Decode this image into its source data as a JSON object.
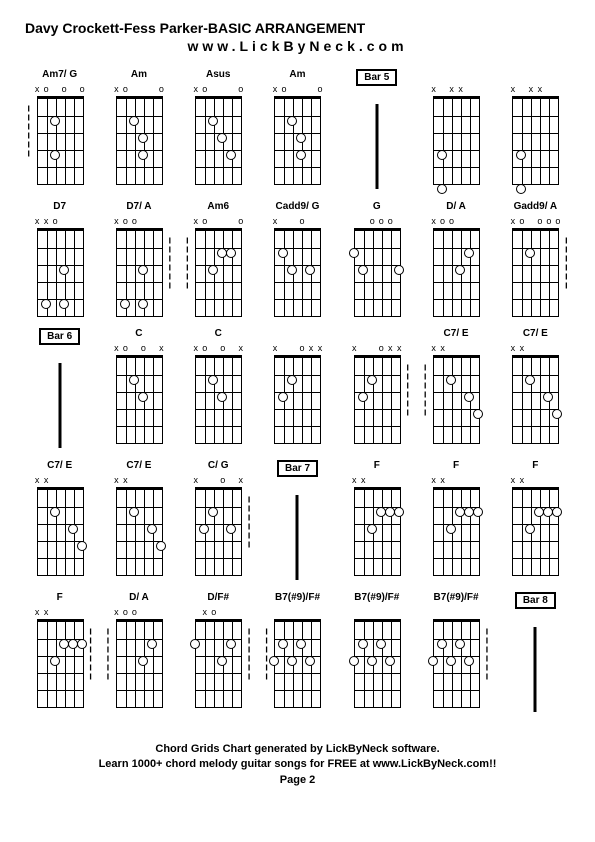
{
  "title": "Davy Crockett-Fess Parker-BASIC ARRANGEMENT",
  "subtitle": "www.LickByNeck.com",
  "footer1": "Chord Grids Chart generated by LickByNeck software.",
  "footer2": "Learn 1000+ chord melody guitar songs for FREE at www.LickByNeck.com!!",
  "footer3": "Page 2",
  "rows": [
    [
      {
        "type": "chord",
        "label": "Am7/ G",
        "top": [
          "x",
          "o",
          "",
          "o",
          "",
          "o"
        ],
        "dots": [
          [
            1,
            2
          ],
          [
            3,
            2
          ]
        ],
        "dashL": true
      },
      {
        "type": "chord",
        "label": "Am",
        "top": [
          "x",
          "o",
          "",
          "",
          "",
          "o"
        ],
        "dots": [
          [
            1,
            2
          ],
          [
            2,
            3
          ],
          [
            3,
            3
          ]
        ]
      },
      {
        "type": "chord",
        "label": "Asus",
        "top": [
          "x",
          "o",
          "",
          "",
          "",
          "o"
        ],
        "dots": [
          [
            1,
            2
          ],
          [
            2,
            3
          ],
          [
            3,
            4
          ]
        ]
      },
      {
        "type": "chord",
        "label": "Am",
        "top": [
          "x",
          "o",
          "",
          "",
          "",
          "o"
        ],
        "dots": [
          [
            1,
            2
          ],
          [
            2,
            3
          ],
          [
            3,
            3
          ]
        ]
      },
      {
        "type": "bar",
        "label": "Bar 5"
      },
      {
        "type": "chord",
        "label": "",
        "top": [
          "x",
          "",
          "x",
          "x",
          "",
          ""
        ],
        "dots": [
          [
            3,
            1
          ],
          [
            5,
            1
          ]
        ]
      },
      {
        "type": "chord",
        "label": "",
        "top": [
          "x",
          "",
          "x",
          "x",
          "",
          ""
        ],
        "dots": [
          [
            3,
            1
          ],
          [
            5,
            1
          ]
        ]
      }
    ],
    [
      {
        "type": "chord",
        "label": "D7",
        "top": [
          "x",
          "x",
          "o",
          "",
          "",
          ""
        ],
        "dots": [
          [
            2,
            3
          ],
          [
            4,
            1
          ],
          [
            4,
            3
          ]
        ]
      },
      {
        "type": "chord",
        "label": "D7/ A",
        "top": [
          "x",
          "o",
          "o",
          "",
          "",
          ""
        ],
        "dots": [
          [
            2,
            3
          ],
          [
            4,
            1
          ],
          [
            4,
            3
          ]
        ],
        "dashR": true
      },
      {
        "type": "chord",
        "label": "Am6",
        "top": [
          "x",
          "o",
          "",
          "",
          "",
          "o"
        ],
        "dots": [
          [
            1,
            3
          ],
          [
            1,
            4
          ],
          [
            2,
            2
          ]
        ],
        "dashL": true
      },
      {
        "type": "chord",
        "label": "Cadd9/ G",
        "top": [
          "x",
          "",
          "",
          "o",
          "",
          ""
        ],
        "dots": [
          [
            1,
            1
          ],
          [
            2,
            2
          ],
          [
            2,
            4
          ]
        ]
      },
      {
        "type": "chord",
        "label": "G",
        "top": [
          "",
          "",
          "o",
          "o",
          "o",
          ""
        ],
        "dots": [
          [
            1,
            0
          ],
          [
            2,
            1
          ],
          [
            2,
            5
          ]
        ]
      },
      {
        "type": "chord",
        "label": "D/ A",
        "top": [
          "x",
          "o",
          "o",
          "",
          "",
          ""
        ],
        "dots": [
          [
            1,
            4
          ],
          [
            2,
            3
          ]
        ]
      },
      {
        "type": "chord",
        "label": "Gadd9/ A",
        "top": [
          "x",
          "o",
          "",
          "o",
          "o",
          "o"
        ],
        "dots": [
          [
            1,
            2
          ]
        ],
        "dashR": true
      }
    ],
    [
      {
        "type": "bar",
        "label": "Bar 6"
      },
      {
        "type": "chord",
        "label": "C",
        "top": [
          "x",
          "o",
          "",
          "o",
          "",
          "x"
        ],
        "dots": [
          [
            1,
            2
          ],
          [
            2,
            3
          ]
        ]
      },
      {
        "type": "chord",
        "label": "C",
        "top": [
          "x",
          "o",
          "",
          "o",
          "",
          "x"
        ],
        "dots": [
          [
            1,
            2
          ],
          [
            2,
            3
          ]
        ]
      },
      {
        "type": "chord",
        "label": "",
        "top": [
          "x",
          "",
          "",
          "o",
          "x",
          "x"
        ],
        "dots": [
          [
            1,
            2
          ],
          [
            2,
            1
          ]
        ]
      },
      {
        "type": "chord",
        "label": "",
        "top": [
          "x",
          "",
          "",
          "o",
          "x",
          "x"
        ],
        "dots": [
          [
            1,
            2
          ],
          [
            2,
            1
          ]
        ],
        "dashR": true
      },
      {
        "type": "chord",
        "label": "C7/ E",
        "top": [
          "x",
          "x",
          "",
          "",
          "",
          ""
        ],
        "dots": [
          [
            1,
            2
          ],
          [
            2,
            4
          ],
          [
            3,
            5
          ]
        ],
        "dashL": true
      },
      {
        "type": "chord",
        "label": "C7/ E",
        "top": [
          "x",
          "x",
          "",
          "",
          "",
          ""
        ],
        "dots": [
          [
            1,
            2
          ],
          [
            2,
            4
          ],
          [
            3,
            5
          ]
        ]
      }
    ],
    [
      {
        "type": "chord",
        "label": "C7/ E",
        "top": [
          "x",
          "x",
          "",
          "",
          "",
          ""
        ],
        "dots": [
          [
            1,
            2
          ],
          [
            2,
            4
          ],
          [
            3,
            5
          ]
        ]
      },
      {
        "type": "chord",
        "label": "C7/ E",
        "top": [
          "x",
          "x",
          "",
          "",
          "",
          ""
        ],
        "dots": [
          [
            1,
            2
          ],
          [
            2,
            4
          ],
          [
            3,
            5
          ]
        ]
      },
      {
        "type": "chord",
        "label": "C/ G",
        "top": [
          "x",
          "",
          "",
          "o",
          "",
          "x"
        ],
        "dots": [
          [
            1,
            2
          ],
          [
            2,
            1
          ],
          [
            2,
            4
          ]
        ],
        "dashR": true
      },
      {
        "type": "bar",
        "label": "Bar 7"
      },
      {
        "type": "chord",
        "label": "F",
        "top": [
          "x",
          "x",
          "",
          "",
          "",
          ""
        ],
        "dots": [
          [
            1,
            3
          ],
          [
            1,
            4
          ],
          [
            1,
            5
          ],
          [
            2,
            2
          ]
        ]
      },
      {
        "type": "chord",
        "label": "F",
        "top": [
          "x",
          "x",
          "",
          "",
          "",
          ""
        ],
        "dots": [
          [
            1,
            3
          ],
          [
            1,
            4
          ],
          [
            1,
            5
          ],
          [
            2,
            2
          ]
        ]
      },
      {
        "type": "chord",
        "label": "F",
        "top": [
          "x",
          "x",
          "",
          "",
          "",
          ""
        ],
        "dots": [
          [
            1,
            3
          ],
          [
            1,
            4
          ],
          [
            1,
            5
          ],
          [
            2,
            2
          ]
        ]
      }
    ],
    [
      {
        "type": "chord",
        "label": "F",
        "top": [
          "x",
          "x",
          "",
          "",
          "",
          ""
        ],
        "dots": [
          [
            1,
            3
          ],
          [
            1,
            4
          ],
          [
            1,
            5
          ],
          [
            2,
            2
          ]
        ],
        "dashR": true
      },
      {
        "type": "chord",
        "label": "D/ A",
        "top": [
          "x",
          "o",
          "o",
          "",
          "",
          ""
        ],
        "dots": [
          [
            1,
            4
          ],
          [
            2,
            3
          ]
        ],
        "dashL": true
      },
      {
        "type": "chord",
        "label": "D/F#",
        "top": [
          "",
          "x",
          "o",
          "",
          "",
          ""
        ],
        "dots": [
          [
            1,
            0
          ],
          [
            1,
            4
          ],
          [
            2,
            3
          ]
        ],
        "dashR": true
      },
      {
        "type": "chord",
        "label": "B7(#9)/F#",
        "top": [
          "",
          "",
          "",
          "",
          "",
          ""
        ],
        "dots": [
          [
            1,
            1
          ],
          [
            1,
            3
          ],
          [
            2,
            0
          ],
          [
            2,
            2
          ],
          [
            2,
            4
          ]
        ],
        "dashL": true
      },
      {
        "type": "chord",
        "label": "B7(#9)/F#",
        "top": [
          "",
          "",
          "",
          "",
          "",
          ""
        ],
        "dots": [
          [
            1,
            1
          ],
          [
            1,
            3
          ],
          [
            2,
            0
          ],
          [
            2,
            2
          ],
          [
            2,
            4
          ]
        ]
      },
      {
        "type": "chord",
        "label": "B7(#9)/F#",
        "top": [
          "",
          "",
          "",
          "",
          "",
          ""
        ],
        "dots": [
          [
            1,
            1
          ],
          [
            1,
            3
          ],
          [
            2,
            0
          ],
          [
            2,
            2
          ],
          [
            2,
            4
          ]
        ],
        "dashR": true
      },
      {
        "type": "bar",
        "label": "Bar 8"
      }
    ]
  ]
}
